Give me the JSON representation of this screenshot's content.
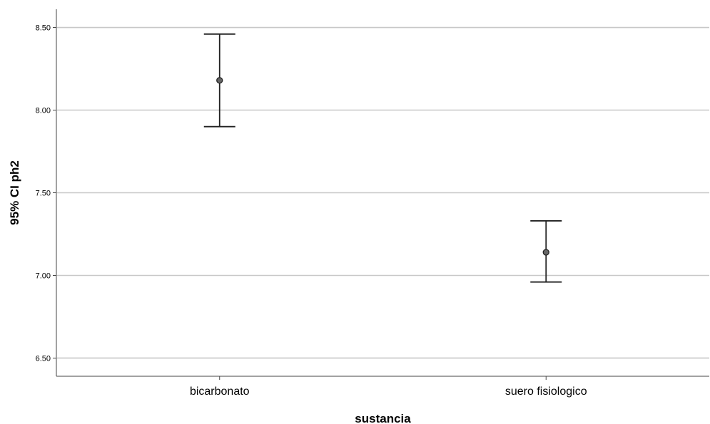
{
  "chart_data": {
    "type": "errorbar",
    "xlabel": "sustancia",
    "ylabel": "95% CI ph2",
    "ylim": [
      6.39,
      8.61
    ],
    "yticks": [
      6.5,
      7.0,
      7.5,
      8.0,
      8.5
    ],
    "ytick_labels": [
      "6.50",
      "7.00",
      "7.50",
      "8.00",
      "8.50"
    ],
    "categories": [
      "bicarbonato",
      "suero fisiologico"
    ],
    "mean": [
      8.18,
      7.14
    ],
    "ci_lower": [
      7.9,
      6.96
    ],
    "ci_upper": [
      8.46,
      7.33
    ],
    "grid": "horizontal",
    "legend": "none",
    "colors": {
      "grid": "#c8c8c8",
      "axis": "#444444",
      "errorbar": "#222222",
      "point_fill": "#666666"
    }
  }
}
